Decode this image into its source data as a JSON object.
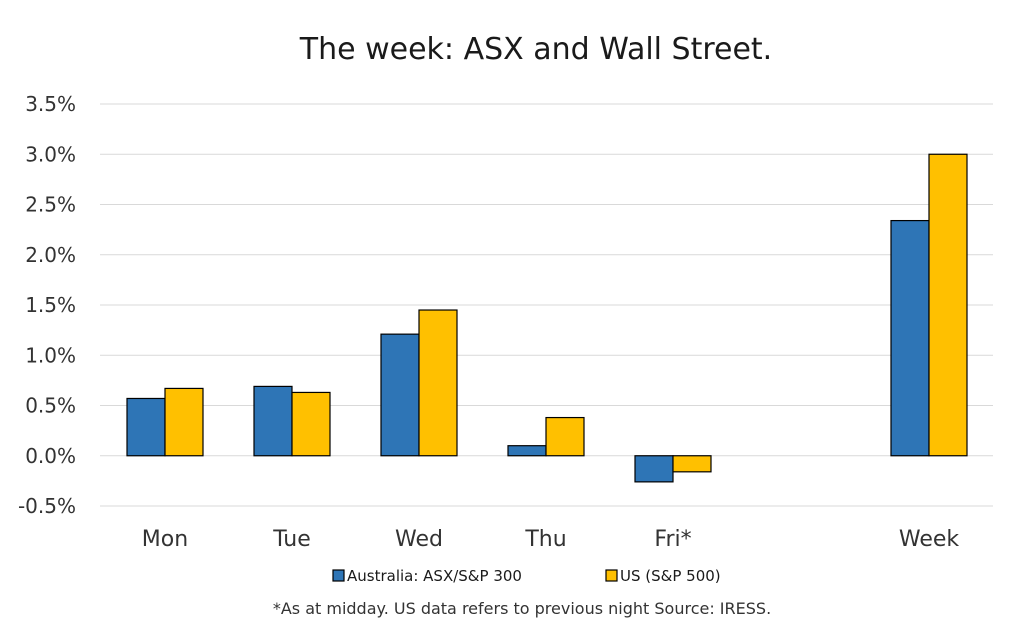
{
  "chart_data": {
    "type": "bar",
    "title": "The week:  ASX and Wall Street.",
    "categories": [
      "Mon",
      "Tue",
      "Wed",
      "Thu",
      "Fri*",
      "Week"
    ],
    "series": [
      {
        "name": "Australia: ASX/S&P 300",
        "color": "#2e75b6",
        "values": [
          0.57,
          0.69,
          1.21,
          0.1,
          -0.26,
          2.34
        ]
      },
      {
        "name": "US (S&P 500)",
        "color": "#ffc000",
        "values": [
          0.67,
          0.63,
          1.45,
          0.38,
          -0.16,
          3.0
        ]
      }
    ],
    "ylim": [
      -0.5,
      3.5
    ],
    "yticks": [
      -0.5,
      0.0,
      0.5,
      1.0,
      1.5,
      2.0,
      2.5,
      3.0,
      3.5
    ],
    "ytick_labels": [
      "-0.5%",
      "0.0%",
      "0.5%",
      "1.0%",
      "1.5%",
      "2.0%",
      "2.5%",
      "3.0%",
      "3.5%"
    ],
    "grid": true,
    "legend_position": "bottom",
    "xlabel": "",
    "ylabel": "",
    "footnote": "*As at midday. US data refers to previous night  Source:  IRESS."
  }
}
